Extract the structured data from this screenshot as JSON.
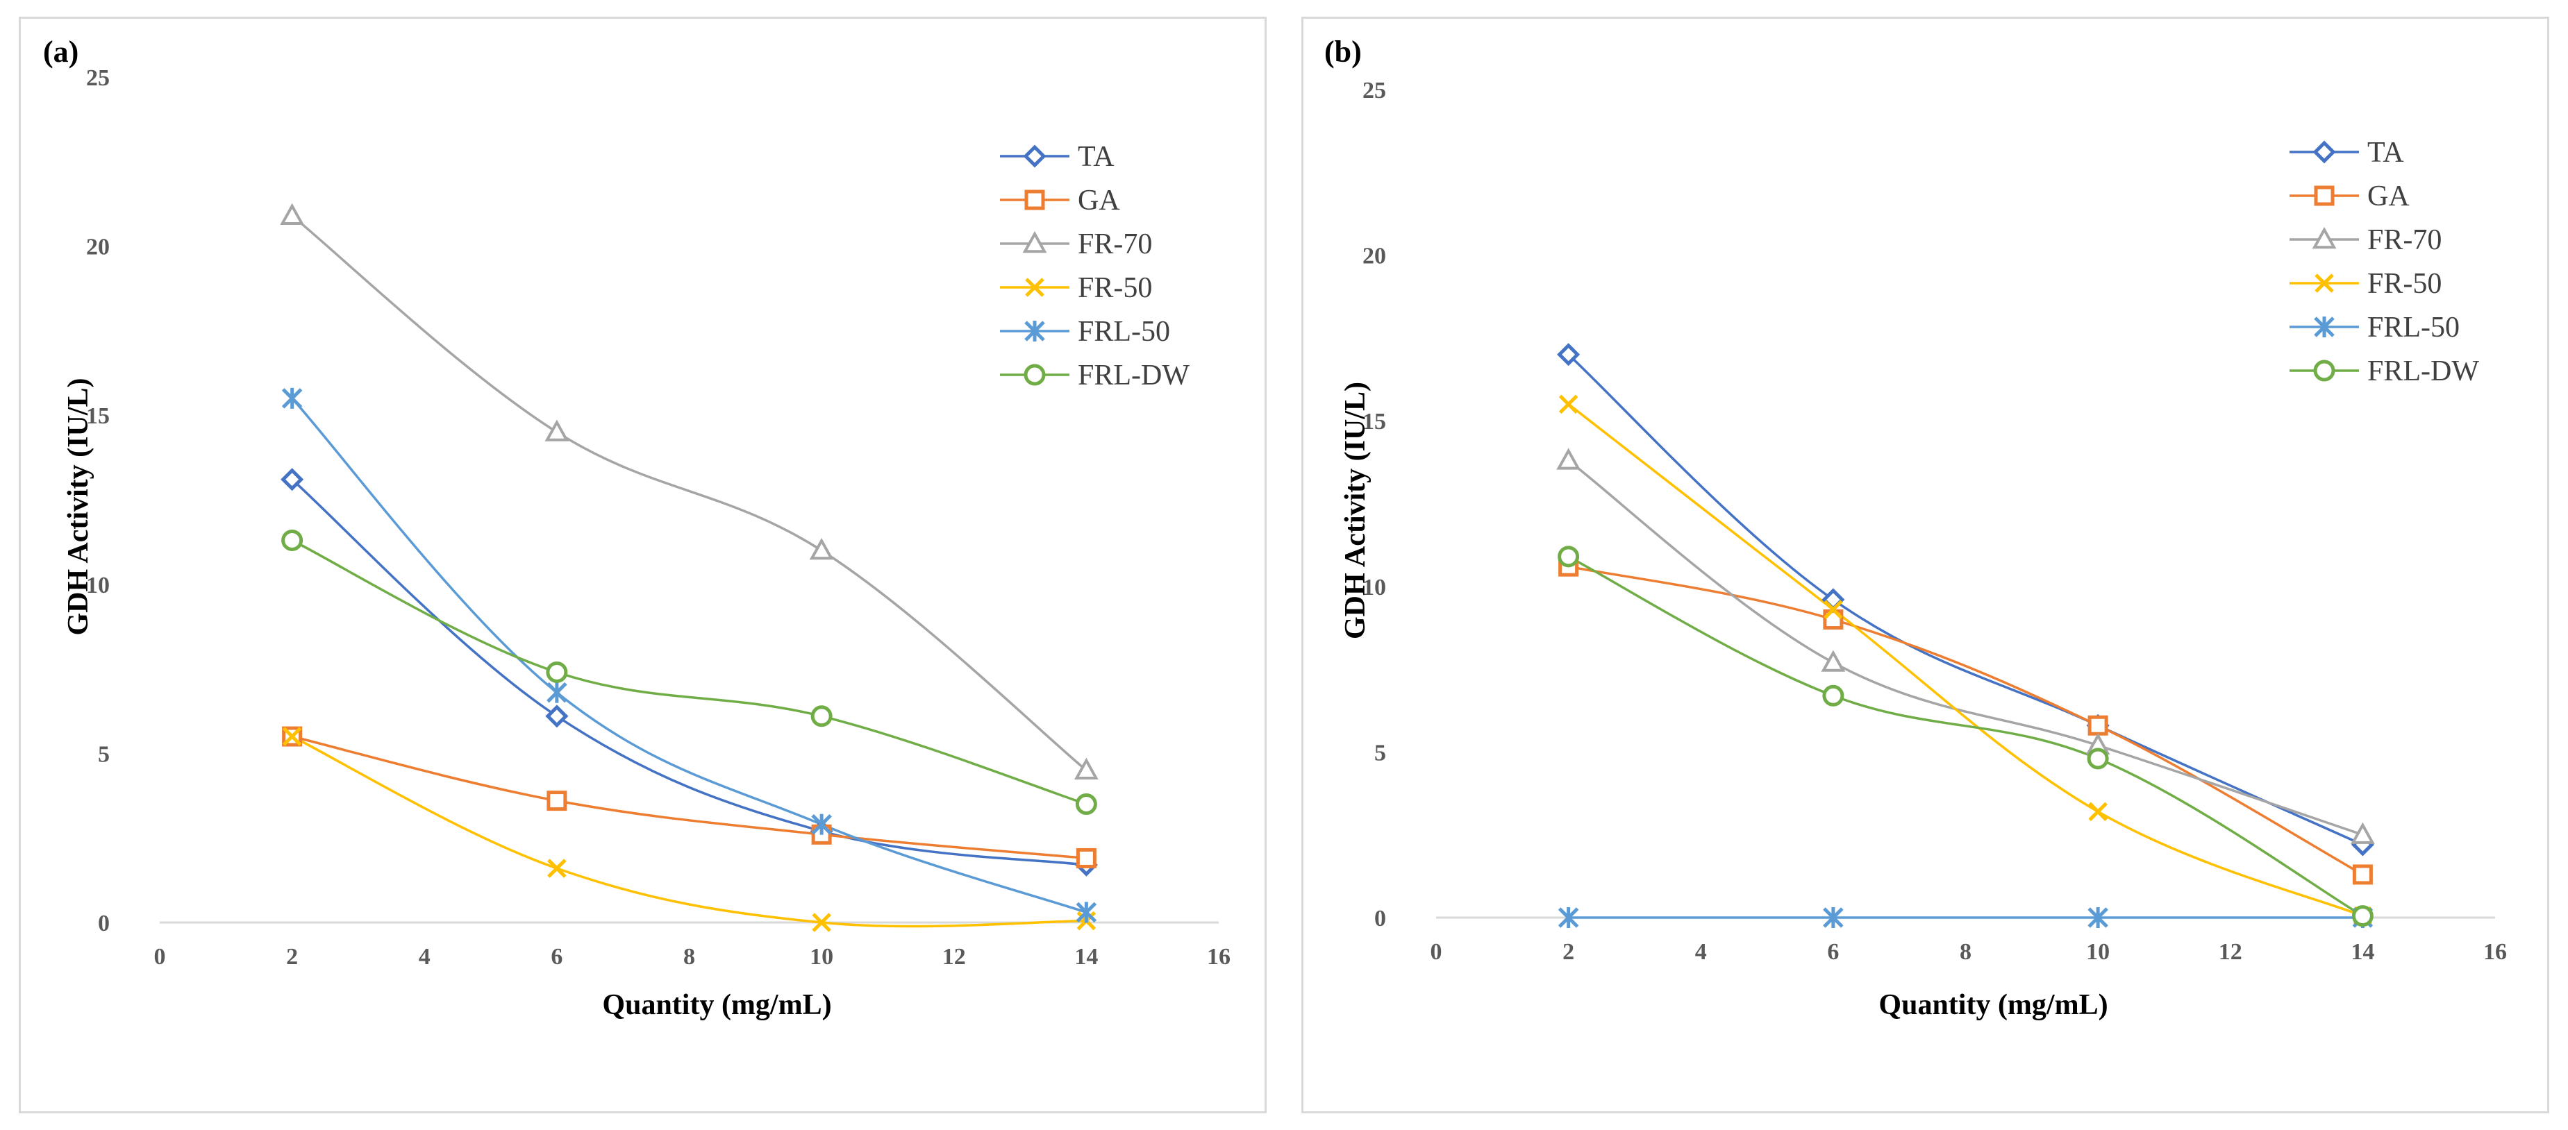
{
  "chart_data": [
    {
      "type": "line",
      "panel_label": "(a)",
      "xlabel": "Quantity (mg/mL)",
      "ylabel": "GDH Activity (IU/L)",
      "xlim": [
        0,
        16
      ],
      "ylim": [
        0,
        25
      ],
      "xticks": [
        "0",
        "2",
        "4",
        "6",
        "8",
        "10",
        "12",
        "14",
        "16"
      ],
      "yticks": [
        "0",
        "5",
        "10",
        "15",
        "20",
        "25"
      ],
      "x": [
        2,
        6,
        10,
        14
      ],
      "legend_position": "top-right",
      "grid": false,
      "series": [
        {
          "name": "TA",
          "values": [
            13.1,
            6.1,
            2.7,
            1.7
          ],
          "color": "#4472c4",
          "marker": "diamond"
        },
        {
          "name": "GA",
          "values": [
            5.5,
            3.6,
            2.6,
            1.9
          ],
          "color": "#ed7d31",
          "marker": "square"
        },
        {
          "name": "FR-70",
          "values": [
            20.9,
            14.5,
            11.0,
            4.5
          ],
          "color": "#a5a5a5",
          "marker": "triangle"
        },
        {
          "name": "FR-50",
          "values": [
            5.5,
            1.6,
            0.0,
            0.05
          ],
          "color": "#ffc000",
          "marker": "x"
        },
        {
          "name": "FRL-50",
          "values": [
            15.5,
            6.8,
            2.9,
            0.3
          ],
          "color": "#5b9bd5",
          "marker": "star"
        },
        {
          "name": "FRL-DW",
          "values": [
            11.3,
            7.4,
            6.1,
            3.5
          ],
          "color": "#70ad47",
          "marker": "circle"
        }
      ]
    },
    {
      "type": "line",
      "panel_label": "(b)",
      "xlabel": "Quantity (mg/mL)",
      "ylabel": "GDH Activity (IU/L)",
      "xlim": [
        0,
        16
      ],
      "ylim": [
        0,
        25
      ],
      "xticks": [
        "0",
        "2",
        "4",
        "6",
        "8",
        "10",
        "12",
        "14",
        "16"
      ],
      "yticks": [
        "0",
        "5",
        "10",
        "15",
        "20",
        "25"
      ],
      "x": [
        2,
        6,
        10,
        14
      ],
      "legend_position": "top-right",
      "grid": false,
      "series": [
        {
          "name": "TA",
          "values": [
            17.0,
            9.6,
            5.8,
            2.2
          ],
          "color": "#4472c4",
          "marker": "diamond"
        },
        {
          "name": "GA",
          "values": [
            10.6,
            9.0,
            5.8,
            1.3
          ],
          "color": "#ed7d31",
          "marker": "square"
        },
        {
          "name": "FR-70",
          "values": [
            13.8,
            7.7,
            5.2,
            2.5
          ],
          "color": "#a5a5a5",
          "marker": "triangle"
        },
        {
          "name": "FR-50",
          "values": [
            15.5,
            9.3,
            3.2,
            0.05
          ],
          "color": "#ffc000",
          "marker": "x"
        },
        {
          "name": "FRL-50",
          "values": [
            0,
            0,
            0,
            0
          ],
          "color": "#5b9bd5",
          "marker": "star"
        },
        {
          "name": "FRL-DW",
          "values": [
            10.9,
            6.7,
            4.8,
            0.05
          ],
          "color": "#70ad47",
          "marker": "circle"
        }
      ]
    }
  ]
}
